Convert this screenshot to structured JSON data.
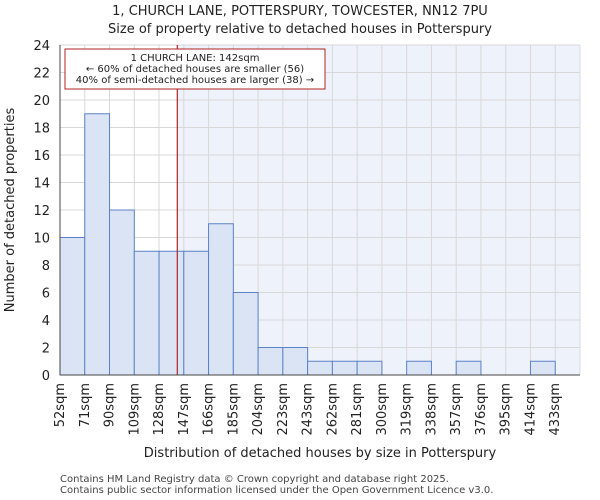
{
  "title": {
    "line1": "1, CHURCH LANE, POTTERSPURY, TOWCESTER, NN12 7PU",
    "line2": "Size of property relative to detached houses in Potterspury"
  },
  "footer": {
    "line1": "Contains HM Land Registry data © Crown copyright and database right 2025.",
    "line2": "Contains public sector information licensed under the Open Government Licence v3.0."
  },
  "chart_data": {
    "type": "bar",
    "title": "Size of property relative to detached houses in Potterspury",
    "xlabel": "Distribution of detached houses by size in Potterspury",
    "ylabel": "Number of detached properties",
    "categories": [
      "52sqm",
      "71sqm",
      "90sqm",
      "109sqm",
      "128sqm",
      "147sqm",
      "166sqm",
      "185sqm",
      "204sqm",
      "223sqm",
      "243sqm",
      "262sqm",
      "281sqm",
      "300sqm",
      "319sqm",
      "338sqm",
      "357sqm",
      "376sqm",
      "395sqm",
      "414sqm",
      "433sqm"
    ],
    "values": [
      10,
      19,
      12,
      9,
      9,
      9,
      11,
      6,
      2,
      2,
      1,
      1,
      1,
      0,
      1,
      0,
      1,
      0,
      0,
      1,
      0
    ],
    "ylim": [
      0,
      24
    ],
    "yticks": [
      0,
      2,
      4,
      6,
      8,
      10,
      12,
      14,
      16,
      18,
      20,
      22,
      24
    ],
    "grid": true,
    "colors": {
      "bar_fill": "#dbe4f5",
      "bar_stroke": "#5b82c8",
      "highlight_bg": "#eef2fb",
      "marker_line": "#b22222",
      "annotation_border": "#b22222"
    },
    "marker": {
      "value_sqm": 142,
      "label": "1 CHURCH LANE: 142sqm"
    },
    "annotation": {
      "line1": "1 CHURCH LANE: 142sqm",
      "line2": "← 60% of detached houses are smaller (56)",
      "line3": "40% of semi-detached houses are larger (38) →"
    }
  }
}
